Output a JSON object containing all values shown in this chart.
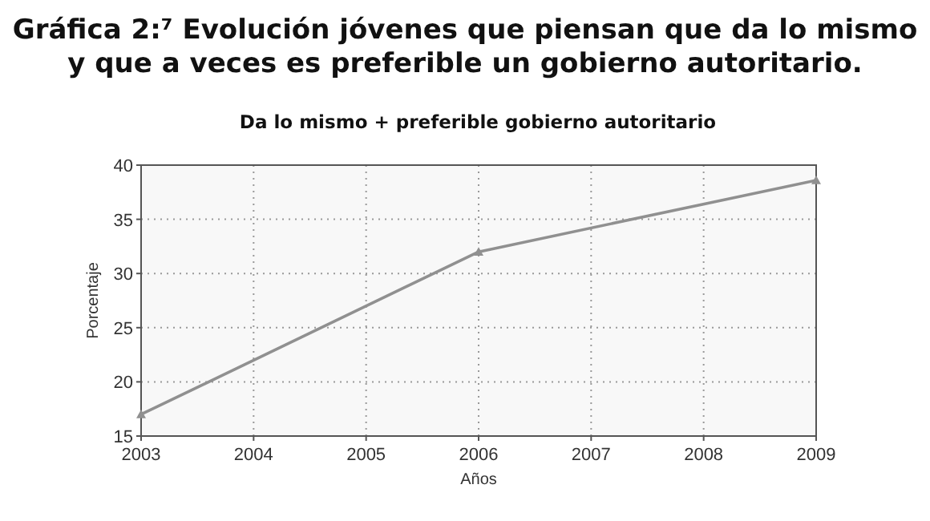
{
  "chart_data": {
    "type": "line",
    "title": "Gráfica 2:⁷ Evolución jóvenes que piensan que da lo mismo\ny que a veces es preferible un gobierno autoritario.",
    "subtitle": "Da lo mismo + preferible gobierno autoritario",
    "xlabel": "Años",
    "ylabel": "Porcentaje",
    "x": [
      2003,
      2006,
      2009
    ],
    "series": [
      {
        "color": "#909090",
        "values": [
          17,
          32,
          38.6
        ]
      }
    ],
    "xlim": [
      2003,
      2009
    ],
    "xticks": [
      2003,
      2004,
      2005,
      2006,
      2007,
      2008,
      2009
    ],
    "ylim": [
      15,
      40
    ],
    "yticks": [
      15,
      20,
      25,
      30,
      35,
      40
    ],
    "grid": true,
    "marker": "triangle",
    "line_style": "solid"
  }
}
